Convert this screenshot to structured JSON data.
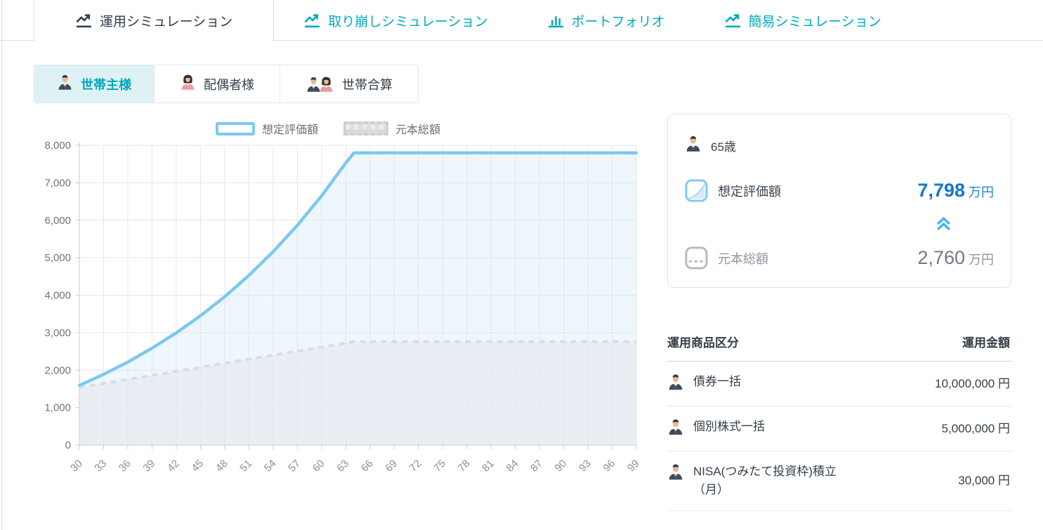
{
  "colors": {
    "accent_teal": "#00abbc",
    "text_dark": "#333e49",
    "text_gray": "#8d969e",
    "value_blue": "#1377c9",
    "line_blue": "#7cc8f1",
    "line_gray": "#d9dee3",
    "fill_blue": "#eef7fc",
    "fill_gray": "#e8eef3"
  },
  "tabs": [
    {
      "label": "運用シミュレーション",
      "active": true
    },
    {
      "label": "取り崩しシミュレーション",
      "active": false
    },
    {
      "label": "ポートフォリオ",
      "active": false
    },
    {
      "label": "簡易シミュレーション",
      "active": false
    }
  ],
  "person_tabs": [
    {
      "label": "世帯主様",
      "active": true
    },
    {
      "label": "配偶者様",
      "active": false
    },
    {
      "label": "世帯合算",
      "active": false
    }
  ],
  "legend": [
    {
      "label": "想定評価額"
    },
    {
      "label": "元本総額"
    }
  ],
  "summary": {
    "age": "65歳",
    "valuation_label": "想定評価額",
    "valuation_value": "7,798",
    "valuation_unit": "万円",
    "principal_label": "元本総額",
    "principal_value": "2,760",
    "principal_unit": "万円"
  },
  "table": {
    "col_product": "運用商品区分",
    "col_amount": "運用金額",
    "rows": [
      {
        "label": "債券一括",
        "label2": "",
        "value": "10,000,000",
        "unit": "円"
      },
      {
        "label": "個別株式一括",
        "label2": "",
        "value": "5,000,000",
        "unit": "円"
      },
      {
        "label": "NISA(つみたて投資枠)積立",
        "label2": "（月）",
        "value": "30,000",
        "unit": "円"
      }
    ]
  },
  "chart_data": {
    "type": "area",
    "x_ticks": [
      30,
      33,
      36,
      39,
      42,
      45,
      48,
      51,
      54,
      57,
      60,
      63,
      66,
      69,
      72,
      75,
      78,
      81,
      84,
      87,
      90,
      93,
      96,
      99
    ],
    "xlim": [
      30,
      99
    ],
    "ylim": [
      0,
      8000
    ],
    "y_ticks": [
      0,
      1000,
      2000,
      3000,
      4000,
      5000,
      6000,
      7000,
      8000
    ],
    "grid": true,
    "legend_position": "top",
    "series": [
      {
        "name": "想定評価額",
        "style": "solid",
        "color": "#7cc8f1",
        "fill": "#eef7fc",
        "points": [
          [
            30,
            1592
          ],
          [
            33,
            1887
          ],
          [
            36,
            2217
          ],
          [
            39,
            2585
          ],
          [
            42,
            2994
          ],
          [
            45,
            3450
          ],
          [
            48,
            3958
          ],
          [
            51,
            4527
          ],
          [
            54,
            5159
          ],
          [
            57,
            5864
          ],
          [
            60,
            6650
          ],
          [
            63,
            7527
          ],
          [
            64,
            7798
          ],
          [
            99,
            7798
          ]
        ]
      },
      {
        "name": "元本総額",
        "style": "dashed",
        "color": "#d9dee3",
        "fill": "#e8eef3",
        "points": [
          [
            30,
            1536
          ],
          [
            33,
            1644
          ],
          [
            36,
            1752
          ],
          [
            39,
            1860
          ],
          [
            42,
            1968
          ],
          [
            45,
            2076
          ],
          [
            48,
            2184
          ],
          [
            51,
            2292
          ],
          [
            54,
            2400
          ],
          [
            57,
            2508
          ],
          [
            60,
            2616
          ],
          [
            63,
            2724
          ],
          [
            64,
            2760
          ],
          [
            99,
            2760
          ]
        ]
      }
    ]
  }
}
